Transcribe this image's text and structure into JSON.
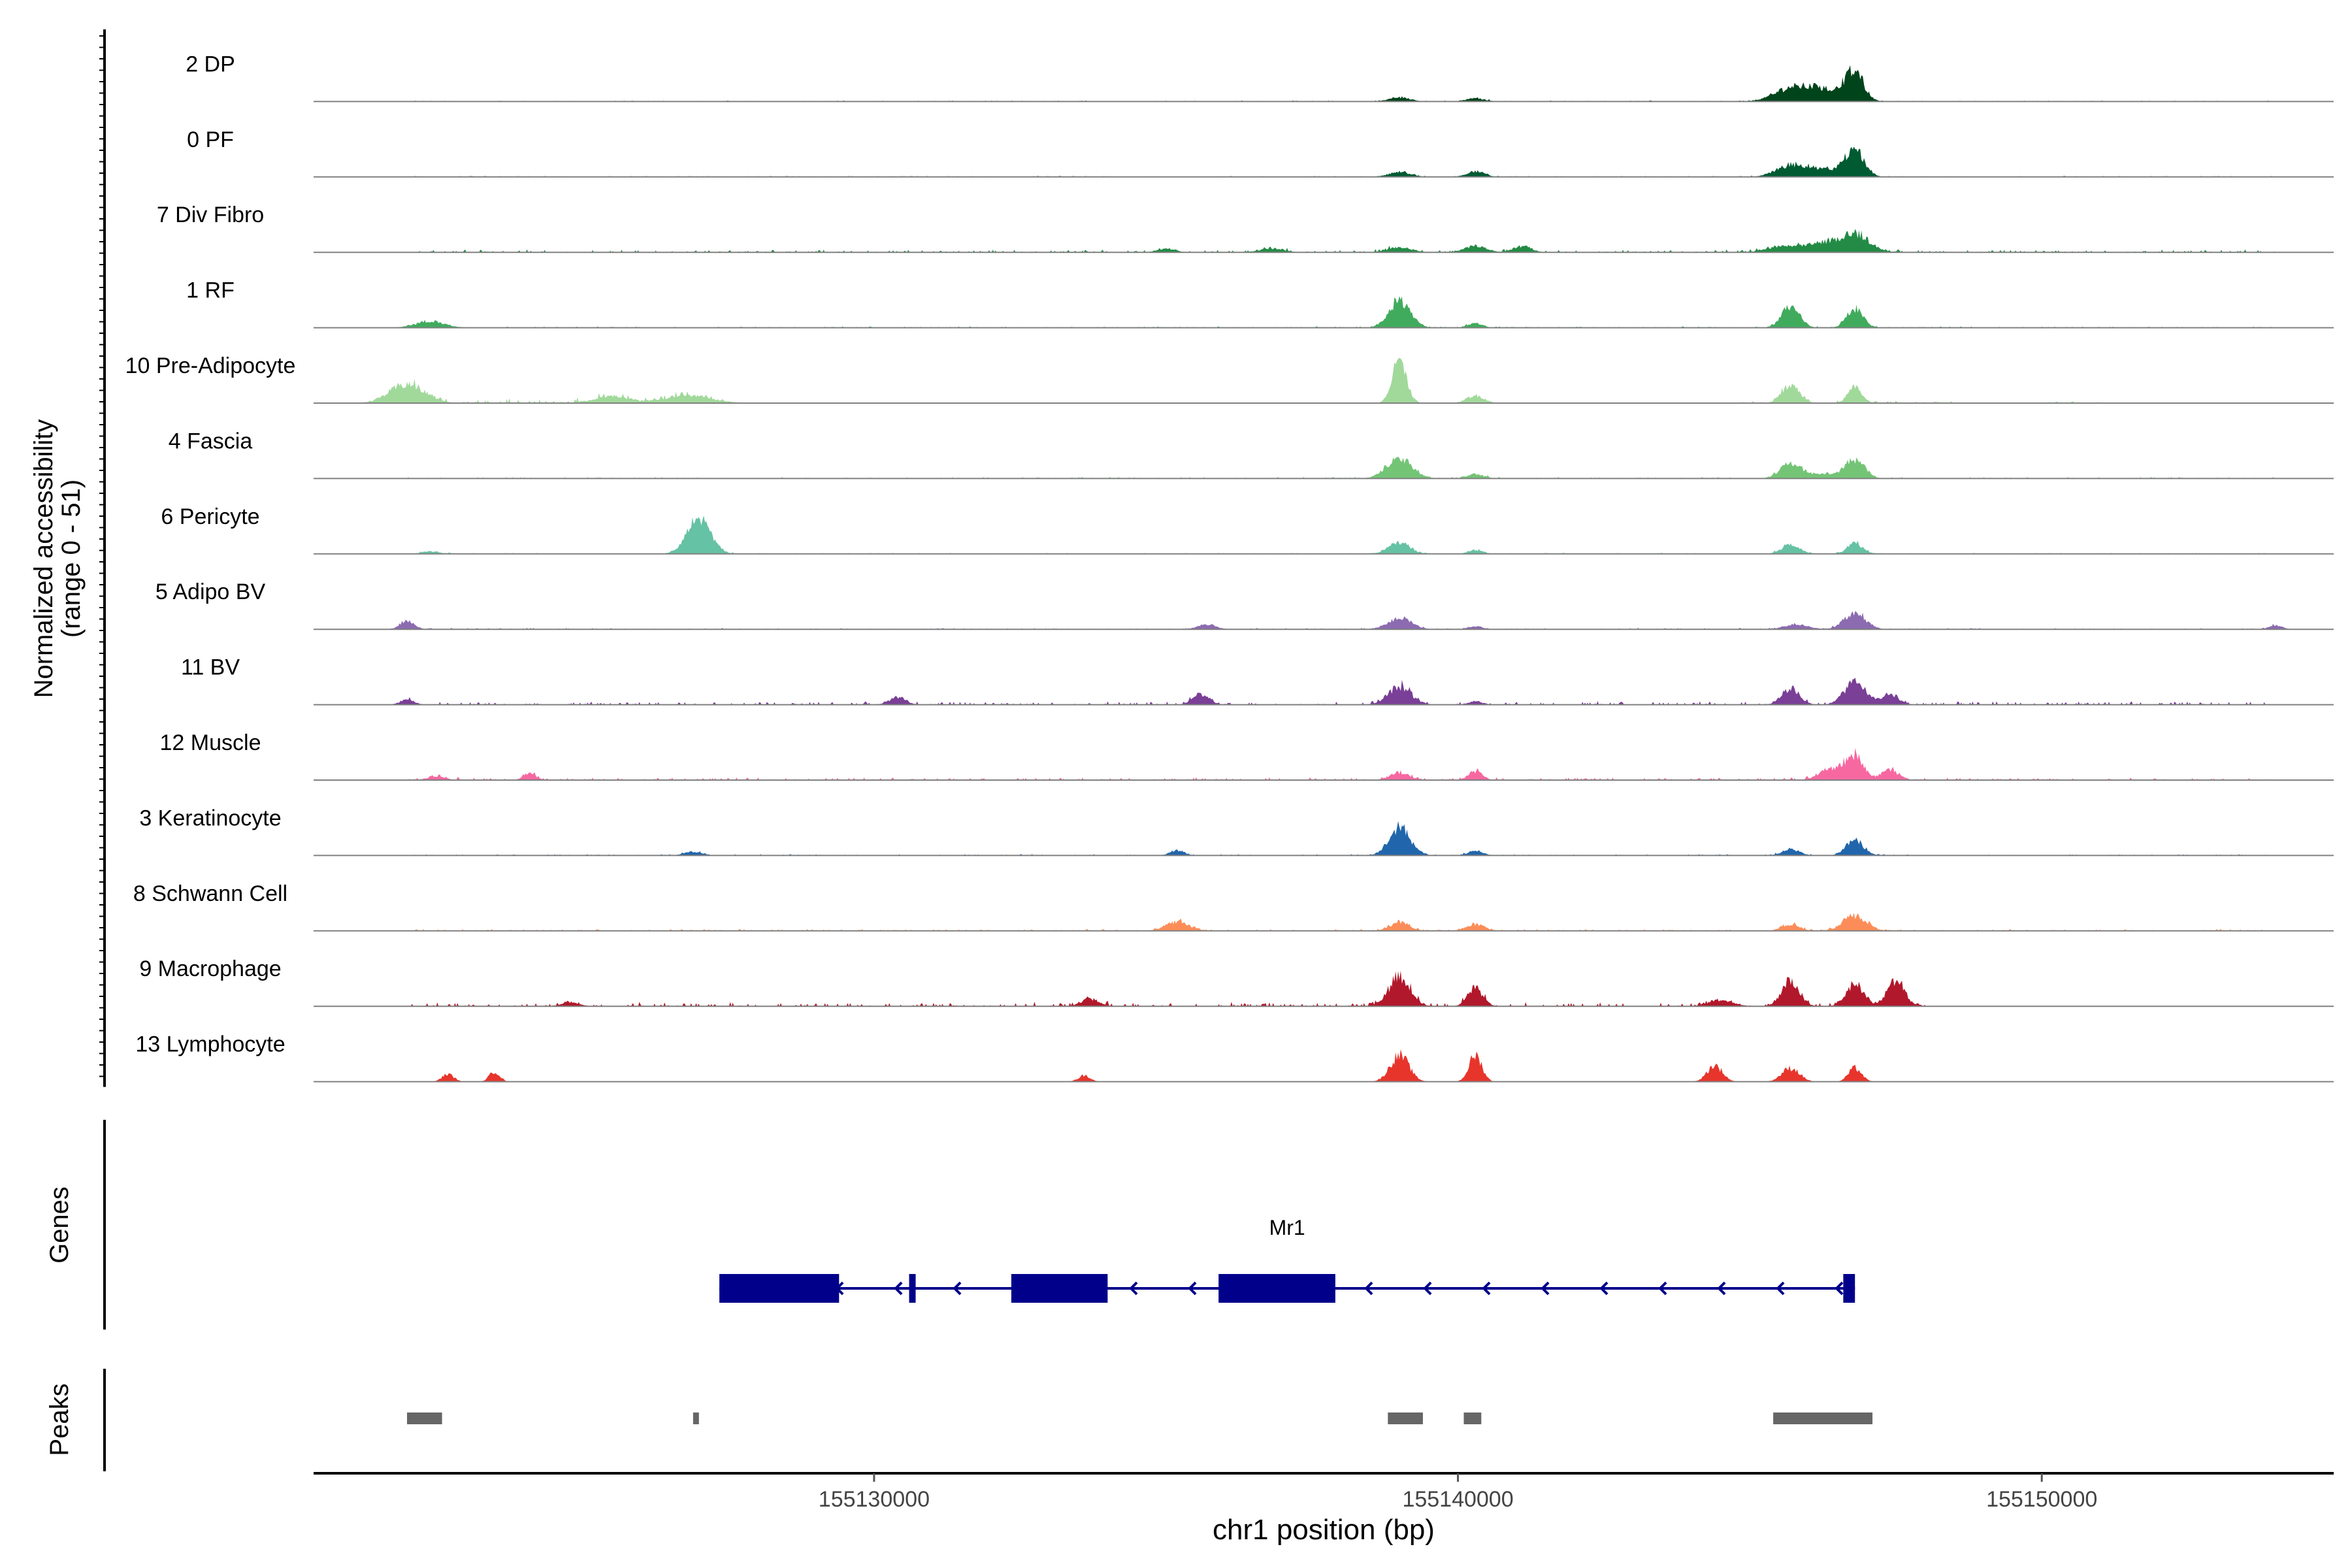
{
  "chart_data": {
    "type": "area",
    "chromosome": "chr1",
    "xlabel": "chr1 position (bp)",
    "xlim": [
      155120400,
      155155000
    ],
    "x_ticks": [
      155130000,
      155140000,
      155150000
    ],
    "x_tick_labels": [
      "155130000",
      "155140000",
      "155150000"
    ],
    "coverage_ylabel_line1": "Normalized accessibility",
    "coverage_ylabel_line2": "(range 0 - 51)",
    "ylim": [
      0,
      51
    ],
    "grid": false,
    "legend": "none",
    "tracks": [
      {
        "name": "2 DP",
        "color": "#00441b",
        "peaks": [
          [
            155139000,
            3.2,
            180
          ],
          [
            155140300,
            2.5,
            160
          ],
          [
            155145700,
            10.5,
            280
          ],
          [
            155146100,
            6,
            200
          ],
          [
            155146800,
            21,
            150
          ],
          [
            155146500,
            8,
            250
          ]
        ],
        "noise": [
          [
            155122000,
            155154000,
            0.5
          ]
        ]
      },
      {
        "name": "0 PF",
        "color": "#005a32",
        "peaks": [
          [
            155139000,
            4,
            180
          ],
          [
            155140300,
            4.5,
            150
          ],
          [
            155145700,
            9,
            250
          ],
          [
            155146800,
            20,
            160
          ],
          [
            155146300,
            6,
            300
          ]
        ],
        "noise": [
          [
            155122000,
            155154000,
            0.5
          ]
        ]
      },
      {
        "name": "7 Div Fibro",
        "color": "#238b45",
        "peaks": [
          [
            155146800,
            14,
            250
          ],
          [
            155146200,
            7,
            300
          ],
          [
            155145500,
            4,
            250
          ],
          [
            155140300,
            5,
            180
          ],
          [
            155141100,
            5,
            150
          ],
          [
            155139000,
            4,
            200
          ],
          [
            155136800,
            3,
            200
          ],
          [
            155135000,
            3,
            150
          ]
        ],
        "noise": [
          [
            155122000,
            155154000,
            1.2
          ]
        ]
      },
      {
        "name": "1 RF",
        "color": "#41ab5d",
        "peaks": [
          [
            155139000,
            22,
            180
          ],
          [
            155140300,
            3.5,
            120
          ],
          [
            155145700,
            17,
            150
          ],
          [
            155146800,
            15,
            140
          ],
          [
            155122400,
            5,
            250
          ]
        ],
        "noise": [
          [
            155122000,
            155154000,
            0.6
          ]
        ]
      },
      {
        "name": "10 Pre-Adipocyte",
        "color": "#a1d99b",
        "peaks": [
          [
            155139000,
            36,
            120
          ],
          [
            155140300,
            6,
            150
          ],
          [
            155145700,
            14,
            150
          ],
          [
            155146800,
            12,
            120
          ],
          [
            155122000,
            15,
            300
          ],
          [
            155125500,
            5,
            300
          ],
          [
            155126800,
            6,
            400
          ]
        ],
        "noise": [
          [
            155122000,
            155127500,
            2
          ],
          [
            155144800,
            155148500,
            1.2
          ],
          [
            155150000,
            155151000,
            0.8
          ]
        ]
      },
      {
        "name": "4 Fascia",
        "color": "#74c476",
        "peaks": [
          [
            155139000,
            16,
            220
          ],
          [
            155140300,
            3.5,
            140
          ],
          [
            155145700,
            12,
            180
          ],
          [
            155146800,
            15,
            160
          ],
          [
            155146300,
            4,
            250
          ]
        ],
        "noise": [
          [
            155122000,
            155154000,
            0.7
          ]
        ]
      },
      {
        "name": "6 Pericyte",
        "color": "#66c2a4",
        "peaks": [
          [
            155127000,
            28,
            200
          ],
          [
            155139000,
            9,
            180
          ],
          [
            155140300,
            3,
            120
          ],
          [
            155145700,
            8,
            150
          ],
          [
            155146800,
            9,
            130
          ],
          [
            155122400,
            2,
            150
          ]
        ],
        "noise": [
          [
            155122000,
            155154000,
            0.5
          ]
        ]
      },
      {
        "name": "5 Adipo BV",
        "color": "#8c6bb1",
        "peaks": [
          [
            155139000,
            9,
            200
          ],
          [
            155146800,
            13,
            180
          ],
          [
            155145800,
            4,
            200
          ],
          [
            155122000,
            7,
            120
          ],
          [
            155135700,
            4,
            150
          ],
          [
            155154000,
            3,
            120
          ],
          [
            155140300,
            2.5,
            120
          ]
        ],
        "noise": [
          [
            155122000,
            155154000,
            0.6
          ]
        ]
      },
      {
        "name": "11 BV",
        "color": "#7a3f96",
        "peaks": [
          [
            155139000,
            14,
            200
          ],
          [
            155146800,
            18,
            180
          ],
          [
            155145700,
            13,
            150
          ],
          [
            155147400,
            8,
            150
          ],
          [
            155130400,
            6,
            140
          ],
          [
            155135600,
            8,
            140
          ],
          [
            155122000,
            4,
            120
          ],
          [
            155140300,
            3,
            110
          ]
        ],
        "noise": [
          [
            155122000,
            155154000,
            1.5
          ]
        ]
      },
      {
        "name": "12 Muscle",
        "color": "#f768a1",
        "peaks": [
          [
            155146800,
            19,
            150
          ],
          [
            155146400,
            9,
            200
          ],
          [
            155147400,
            8,
            150
          ],
          [
            155139000,
            6,
            160
          ],
          [
            155140300,
            7,
            120
          ],
          [
            155124100,
            5,
            110
          ],
          [
            155122500,
            3,
            150
          ]
        ],
        "noise": [
          [
            155122000,
            155154000,
            1.2
          ]
        ]
      },
      {
        "name": "3 Keratinocyte",
        "color": "#2166ac",
        "peaks": [
          [
            155139000,
            23,
            180
          ],
          [
            155146800,
            12,
            150
          ],
          [
            155145700,
            5,
            150
          ],
          [
            155140300,
            4,
            120
          ],
          [
            155135200,
            4,
            120
          ],
          [
            155126900,
            3,
            150
          ]
        ],
        "noise": [
          [
            155122000,
            155154000,
            0.6
          ]
        ]
      },
      {
        "name": "8 Schwann Cell",
        "color": "#fc8d59",
        "peaks": [
          [
            155146800,
            12,
            200
          ],
          [
            155139000,
            7,
            160
          ],
          [
            155140300,
            5,
            160
          ],
          [
            155135200,
            7,
            200
          ],
          [
            155145700,
            5,
            150
          ]
        ],
        "noise": [
          [
            155122000,
            155154000,
            0.8
          ]
        ]
      },
      {
        "name": "9 Macrophage",
        "color": "#b2182b",
        "peaks": [
          [
            155139000,
            24,
            180
          ],
          [
            155140300,
            14,
            130
          ],
          [
            155145700,
            20,
            150
          ],
          [
            155146800,
            18,
            150
          ],
          [
            155147500,
            20,
            150
          ],
          [
            155144500,
            5,
            200
          ],
          [
            155133700,
            6,
            150
          ],
          [
            155124800,
            3,
            150
          ]
        ],
        "noise": [
          [
            155122000,
            155148000,
            1.8
          ]
        ]
      },
      {
        "name": "13 Lymphocyte",
        "color": "#e7352c",
        "peaks": [
          [
            155139000,
            21,
            160
          ],
          [
            155140300,
            21,
            110
          ],
          [
            155144400,
            13,
            130
          ],
          [
            155145700,
            11,
            150
          ],
          [
            155146800,
            11,
            110
          ],
          [
            155122700,
            6,
            100
          ],
          [
            155123500,
            8,
            90
          ],
          [
            155133600,
            5,
            100
          ]
        ],
        "noise": []
      }
    ],
    "genes": [
      {
        "name": "Mr1",
        "strand": "-",
        "color": "#00008b",
        "span": [
          155127350,
          155146800
        ],
        "exons": [
          [
            155127350,
            155129400
          ],
          [
            155130600,
            155130700
          ],
          [
            155132350,
            155134000
          ],
          [
            155135900,
            155137900
          ],
          [
            155146600,
            155146800
          ]
        ]
      }
    ],
    "peak_regions": [
      [
        155122000,
        155122600
      ],
      [
        155126900,
        155127000
      ],
      [
        155138800,
        155139400
      ],
      [
        155140100,
        155140400
      ],
      [
        155145400,
        155147100
      ]
    ]
  },
  "panels": {
    "genes_label": "Genes",
    "peaks_label": "Peaks"
  },
  "colors": {
    "axis": "#000000",
    "baseline": "#808080",
    "peak_region": "#666666"
  }
}
